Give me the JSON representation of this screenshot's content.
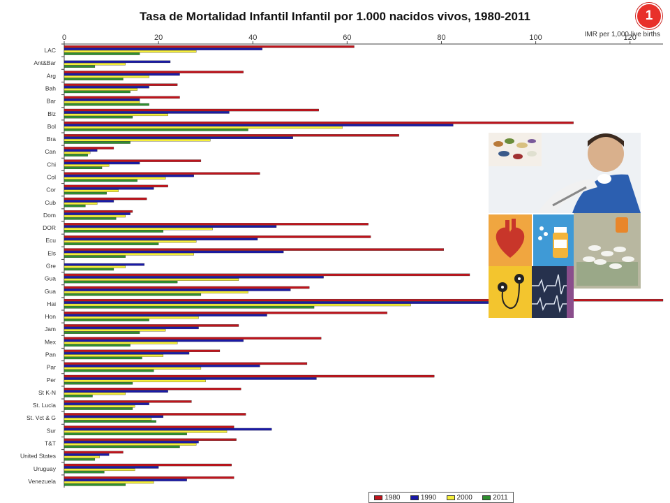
{
  "title": "Tasa de Mortalidad Infantil Infantil por 1.000 nacidos vivos, 1980-2011",
  "slide_number": "1",
  "chart_data": {
    "type": "bar",
    "orientation": "horizontal",
    "xlabel": "IMR per 1,000 live births",
    "xlim": [
      0,
      127
    ],
    "x_ticks": [
      0,
      20,
      40,
      60,
      80,
      100,
      120
    ],
    "x_axis_position": "top",
    "grid": false,
    "legend_position": "bottom-right",
    "categories": [
      "LAC",
      "Ant&Bar",
      "Arg",
      "Bah",
      "Bar",
      "Blz",
      "Bol",
      "Bra",
      "Can",
      "Chi",
      "Col",
      "Cor",
      "Cub",
      "Dom",
      "DOR",
      "Ecu",
      "Els",
      "Gre",
      "Gua",
      "Gua",
      "Hai",
      "Hon",
      "Jam",
      "Mex",
      "Pan",
      "Par",
      "Per",
      "St K-N",
      "St. Lucia",
      "St. Vct & G",
      "Sur",
      "T&T",
      "United States",
      "Uruguay",
      "Venezuela"
    ],
    "series": [
      {
        "name": "1980",
        "color": "#c0141c",
        "values": [
          61.5,
          null,
          38,
          24,
          24.5,
          54,
          108,
          71,
          10.5,
          29,
          41.5,
          22,
          17.5,
          14.5,
          64.5,
          65,
          80.5,
          null,
          86,
          52,
          127,
          68.5,
          37,
          54.5,
          33,
          51.5,
          78.5,
          37.5,
          27,
          38.5,
          36,
          36.5,
          12.5,
          35.5,
          36
        ]
      },
      {
        "name": "1990",
        "color": "#1a1aa8",
        "values": [
          42,
          22.5,
          24.5,
          18,
          16,
          35,
          82.5,
          48.5,
          7,
          16,
          27.5,
          19,
          10.5,
          14,
          45,
          41,
          46.5,
          17,
          55,
          48,
          100,
          43,
          28.5,
          38,
          26.5,
          41.5,
          53.5,
          22,
          18,
          21,
          44,
          28.5,
          9.5,
          20,
          26
        ]
      },
      {
        "name": "2000",
        "color": "#f5ef3a",
        "values": [
          28,
          13,
          18,
          15.5,
          16,
          22,
          59,
          31,
          5.5,
          9.5,
          21.5,
          11.5,
          7,
          13,
          31.5,
          28,
          27.5,
          13,
          37,
          39,
          73.5,
          28.5,
          21.5,
          24,
          21,
          29,
          30,
          13,
          15,
          18.5,
          34.5,
          28,
          7.5,
          15,
          19
        ]
      },
      {
        "name": "2011",
        "color": "#2f8f2f",
        "values": [
          16,
          6.5,
          12.5,
          14,
          18,
          14.5,
          39,
          14,
          5,
          8,
          15.5,
          9,
          4.5,
          11,
          21,
          20,
          13,
          10.5,
          24,
          29,
          53,
          18,
          16,
          14,
          16.5,
          19,
          14.5,
          6,
          14.5,
          19.5,
          26,
          24.5,
          6.5,
          8.5,
          13
        ]
      }
    ]
  },
  "collage_icons": [
    "pills-icon",
    "vaccination-icon",
    "heart-icon",
    "medicine-bottle-icon",
    "money-pills-icon",
    "ecg-icon",
    "ecg-monitor-icon"
  ]
}
